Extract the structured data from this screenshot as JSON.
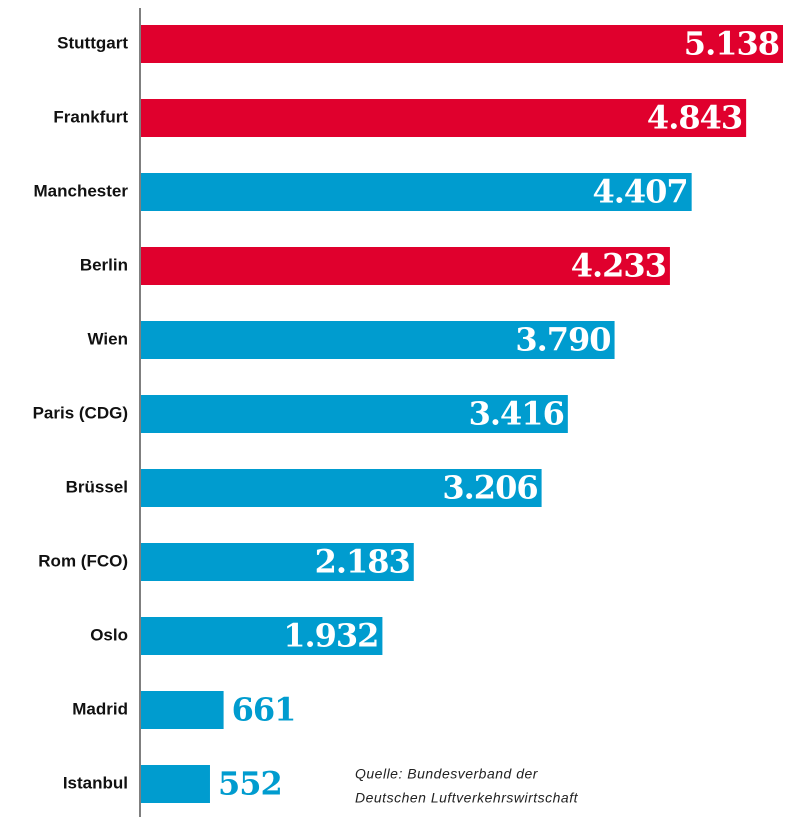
{
  "chart_data": {
    "type": "barh",
    "categories": [
      "Stuttgart",
      "Frankfurt",
      "Manchester",
      "Berlin",
      "Wien",
      "Paris (CDG)",
      "Brüssel",
      "Rom (FCO)",
      "Oslo",
      "Madrid",
      "Istanbul"
    ],
    "values": [
      5138,
      4843,
      4407,
      4233,
      3790,
      3416,
      3206,
      2183,
      1932,
      661,
      552
    ],
    "value_labels": [
      "5.138",
      "4.843",
      "4.407",
      "4.233",
      "3.790",
      "3.416",
      "3.206",
      "2.183",
      "1.932",
      "661",
      "552"
    ],
    "colors": [
      "#e0002d",
      "#e0002d",
      "#009ccf",
      "#e0002d",
      "#009ccf",
      "#009ccf",
      "#009ccf",
      "#009ccf",
      "#009ccf",
      "#009ccf",
      "#009ccf"
    ],
    "source": [
      "Quelle: Bundesverband der",
      "Deutschen Luftverkehrswirtschaft"
    ]
  }
}
